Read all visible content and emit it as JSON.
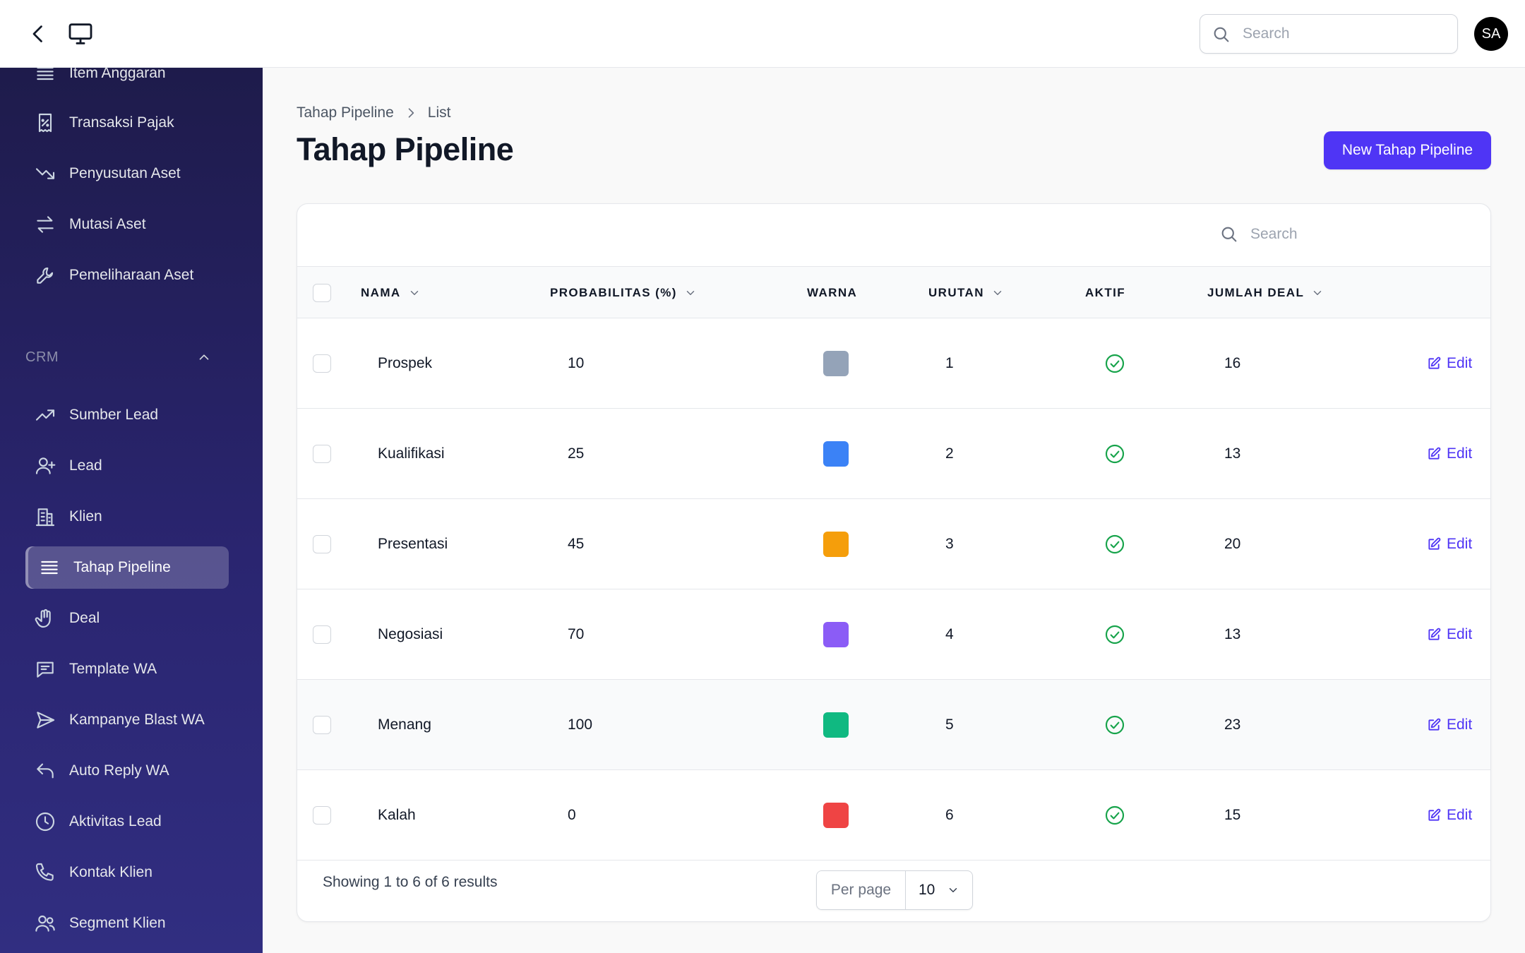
{
  "topbar": {
    "search_placeholder": "Search",
    "avatar_initials": "SA"
  },
  "sidebar": {
    "items_top": [
      {
        "label": "Item Anggaran",
        "icon": "list-icon"
      },
      {
        "label": "Transaksi Pajak",
        "icon": "receipt-percent-icon"
      },
      {
        "label": "Penyusutan Aset",
        "icon": "trending-down-icon"
      },
      {
        "label": "Mutasi Aset",
        "icon": "arrows-right-left-icon"
      },
      {
        "label": "Pemeliharaan Aset",
        "icon": "wrench-icon"
      }
    ],
    "group_label": "CRM",
    "items_crm": [
      {
        "label": "Sumber Lead",
        "icon": "trending-up-icon"
      },
      {
        "label": "Lead",
        "icon": "user-plus-icon"
      },
      {
        "label": "Klien",
        "icon": "building-icon"
      },
      {
        "label": "Tahap Pipeline",
        "icon": "bars-icon",
        "active": true
      },
      {
        "label": "Deal",
        "icon": "hand-icon"
      },
      {
        "label": "Template WA",
        "icon": "chat-icon"
      },
      {
        "label": "Kampanye Blast WA",
        "icon": "paper-airplane-icon"
      },
      {
        "label": "Auto Reply WA",
        "icon": "reply-icon"
      },
      {
        "label": "Aktivitas Lead",
        "icon": "clock-icon"
      },
      {
        "label": "Kontak Klien",
        "icon": "phone-icon"
      },
      {
        "label": "Segment Klien",
        "icon": "users-icon"
      }
    ]
  },
  "breadcrumb": {
    "parent": "Tahap Pipeline",
    "current": "List"
  },
  "page": {
    "title": "Tahap Pipeline",
    "new_button": "New Tahap Pipeline"
  },
  "table": {
    "search_placeholder": "Search",
    "columns": {
      "nama": "NAMA",
      "probabilitas": "PROBABILITAS (%)",
      "warna": "WARNA",
      "urutan": "URUTAN",
      "aktif": "AKTIF",
      "jumlah_deal": "JUMLAH DEAL"
    },
    "edit_label": "Edit",
    "rows": [
      {
        "nama": "Prospek",
        "probabilitas": "10",
        "warna": "#94a3b8",
        "urutan": "1",
        "aktif": true,
        "jumlah_deal": "16"
      },
      {
        "nama": "Kualifikasi",
        "probabilitas": "25",
        "warna": "#3b82f6",
        "urutan": "2",
        "aktif": true,
        "jumlah_deal": "13"
      },
      {
        "nama": "Presentasi",
        "probabilitas": "45",
        "warna": "#f59e0b",
        "urutan": "3",
        "aktif": true,
        "jumlah_deal": "20"
      },
      {
        "nama": "Negosiasi",
        "probabilitas": "70",
        "warna": "#8b5cf6",
        "urutan": "4",
        "aktif": true,
        "jumlah_deal": "13"
      },
      {
        "nama": "Menang",
        "probabilitas": "100",
        "warna": "#10b981",
        "urutan": "5",
        "aktif": true,
        "jumlah_deal": "23"
      },
      {
        "nama": "Kalah",
        "probabilitas": "0",
        "warna": "#ef4444",
        "urutan": "6",
        "aktif": true,
        "jumlah_deal": "15"
      }
    ],
    "footer": {
      "summary": "Showing 1 to 6 of 6 results",
      "per_page_label": "Per page",
      "per_page_value": "10"
    }
  },
  "colors": {
    "accent": "#4f35f5",
    "active_check": "#16a34a",
    "sidebar_top": "#1e1b4b",
    "sidebar_bottom": "#312e81"
  }
}
